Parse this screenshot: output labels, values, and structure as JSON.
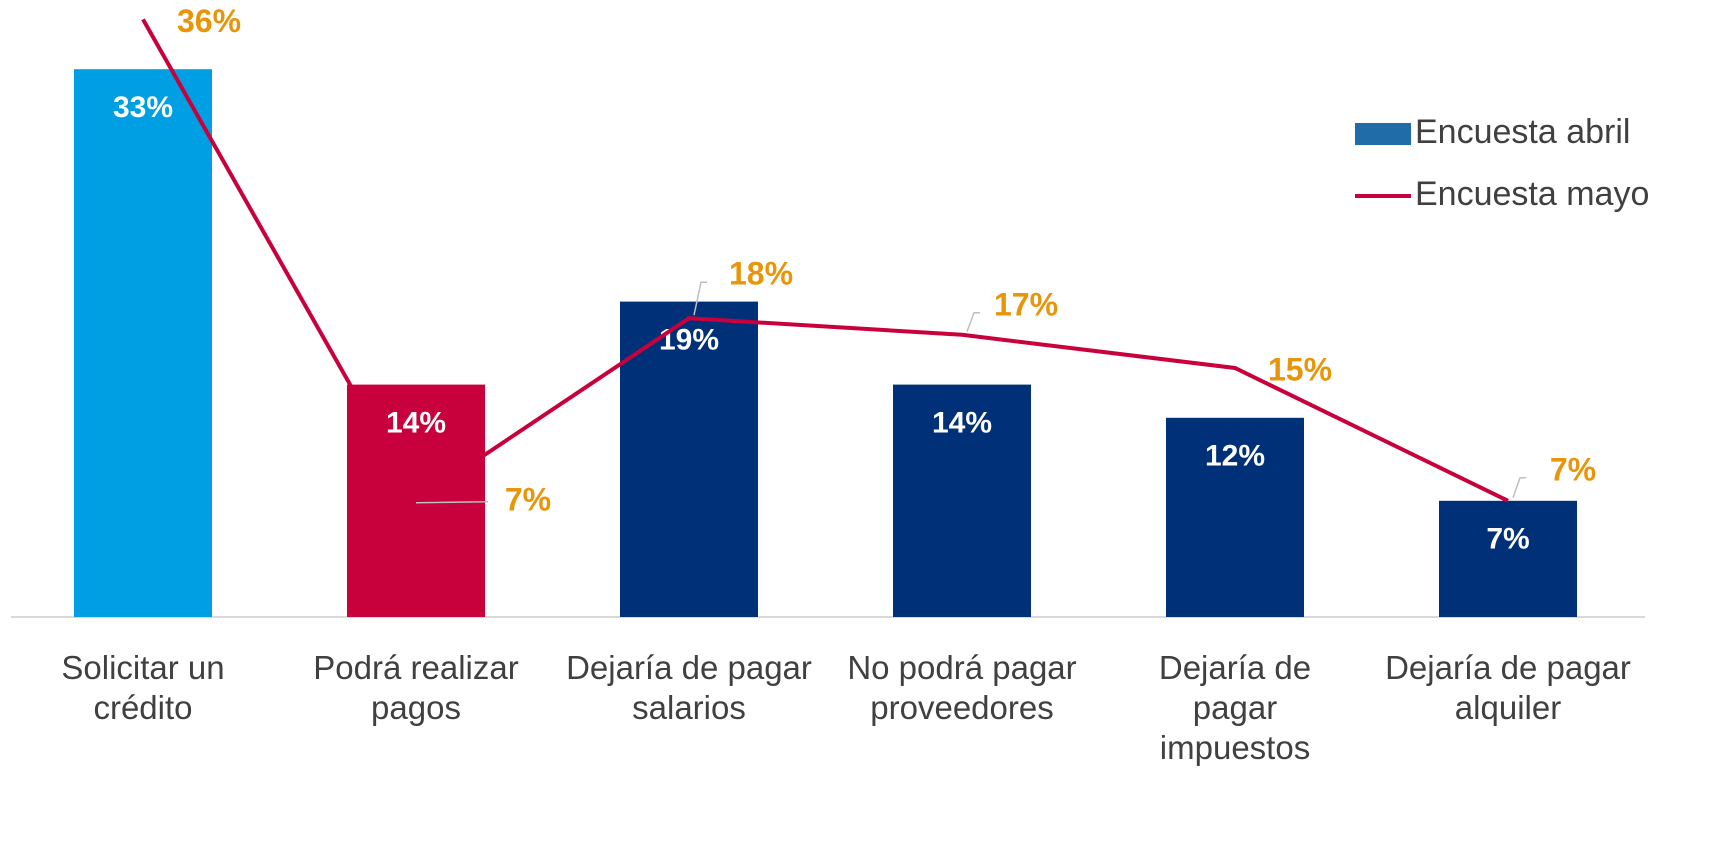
{
  "chart_data": {
    "type": "bar+line",
    "categories": [
      "Solicitar un crédito",
      "Podrá realizar pagos",
      "Dejaría de pagar salarios",
      "No podrá pagar proveedores",
      "Dejaría de pagar impuestos",
      "Dejaría de pagar alquiler"
    ],
    "series": [
      {
        "name": "Encuesta abril",
        "type": "bar",
        "color": "#1f6ca8",
        "colors": [
          "#009fe3",
          "#c8003c",
          "#003078",
          "#003078",
          "#003078",
          "#003078"
        ],
        "values": [
          33,
          14,
          19,
          14,
          12,
          7
        ],
        "value_labels": [
          "33%",
          "14%",
          "19%",
          "14%",
          "12%",
          "7%"
        ]
      },
      {
        "name": "Encuesta mayo",
        "type": "line",
        "color": "#c8003c",
        "label_color": "#e8950a",
        "values": [
          36,
          7,
          18,
          17,
          15,
          7
        ],
        "value_labels": [
          "36%",
          "7%",
          "18%",
          "17%",
          "15%",
          "7%"
        ]
      }
    ],
    "legend": "upper right"
  }
}
